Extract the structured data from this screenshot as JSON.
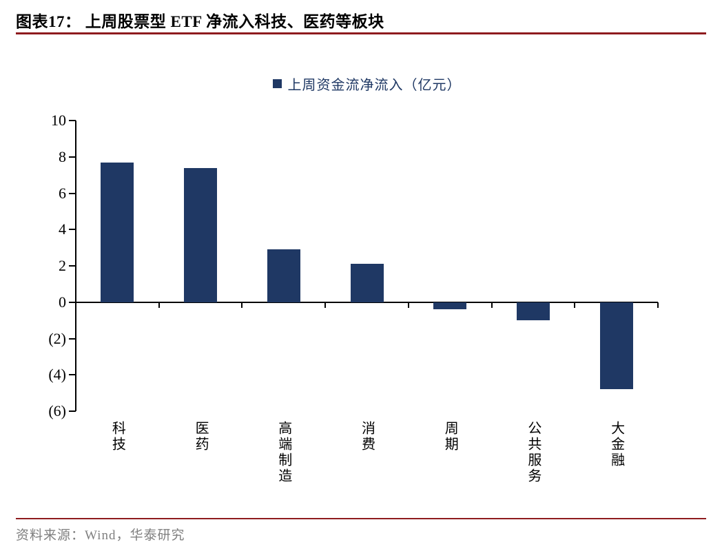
{
  "header": {
    "title": "图表17： 上周股票型 ETF 净流入科技、医药等板块"
  },
  "chart_data": {
    "type": "bar",
    "title": "上周股票型 ETF 净流入科技、医药等板块",
    "legend": "上周资金流净流入（亿元）",
    "categories": [
      "科技",
      "医药",
      "高端制造",
      "消费",
      "周期",
      "公共服务",
      "大金融"
    ],
    "values": [
      7.7,
      7.4,
      2.9,
      2.1,
      -0.4,
      -1.0,
      -4.8
    ],
    "ylabel": "亿元",
    "ylim": [
      -6,
      10
    ],
    "ytick_step": 2,
    "ytick_labels": [
      "10",
      "8",
      "6",
      "4",
      "2",
      "0",
      "(2)",
      "(4)",
      "(6)"
    ],
    "grid": false,
    "legend_position": "top-center",
    "bar_color": "#1F3864"
  },
  "footer": {
    "source": "资料来源：Wind，华泰研究"
  },
  "colors": {
    "accent_rule": "#8E1B1E",
    "bar": "#1F3864",
    "legend_text": "#1F3864",
    "axis": "#000000",
    "source_text": "#7F7F7F",
    "title_text": "#000000"
  }
}
